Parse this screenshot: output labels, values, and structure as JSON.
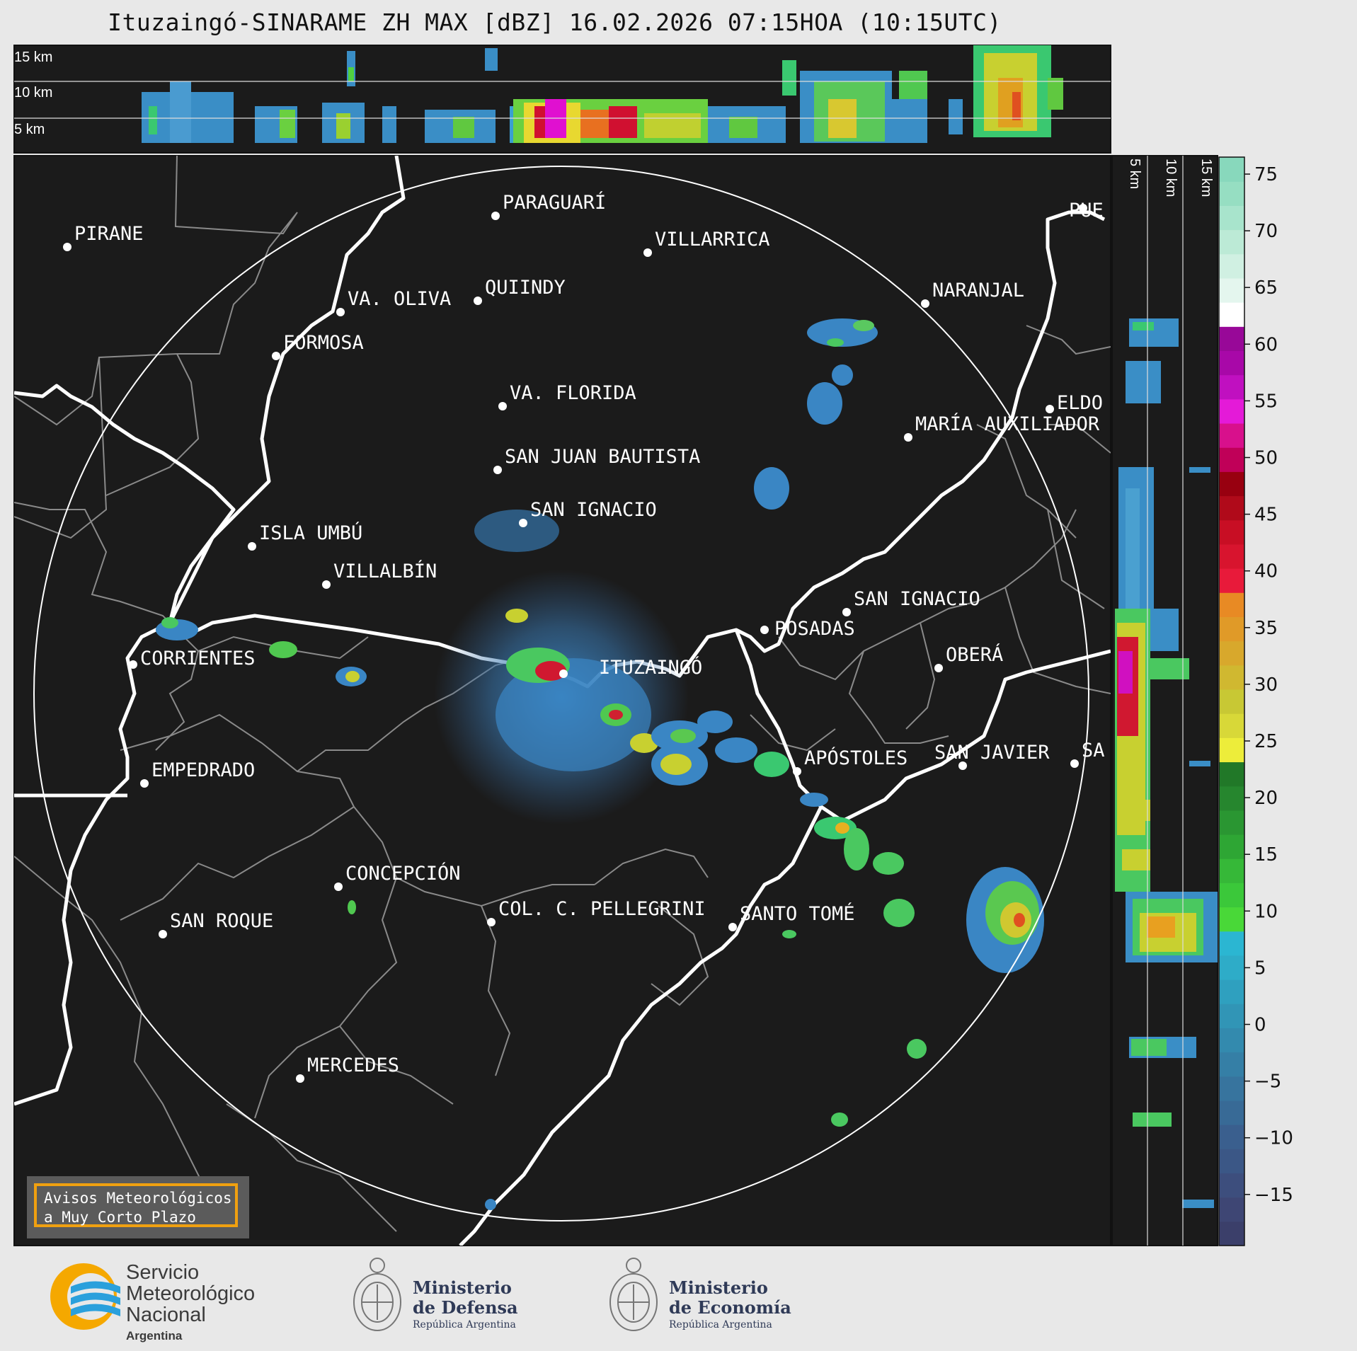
{
  "title": "Ituzaingó-SINARAME ZH MAX [dBZ] 16.02.2026 07:15HOA (10:15UTC)",
  "top_panel": {
    "height_labels": [
      "15 km",
      "10 km",
      "5 km"
    ]
  },
  "side_panel": {
    "height_labels": [
      "5 km",
      "10 km",
      "15 km"
    ]
  },
  "colorbar": {
    "ticks": [
      "75",
      "70",
      "65",
      "60",
      "55",
      "50",
      "45",
      "40",
      "35",
      "30",
      "25",
      "20",
      "15",
      "10",
      "5",
      "0",
      "−5",
      "−10",
      "−15"
    ]
  },
  "places": [
    {
      "name": "PARAGUARÍ"
    },
    {
      "name": "VILLARRICA"
    },
    {
      "name": "PIRANE"
    },
    {
      "name": "QUIINDY"
    },
    {
      "name": "VA. OLIVA"
    },
    {
      "name": "NARANJAL"
    },
    {
      "name": "FORMOSA"
    },
    {
      "name": "PUE"
    },
    {
      "name": "VA. FLORIDA"
    },
    {
      "name": "ELDO"
    },
    {
      "name": "MARÍA AUXILIADOR"
    },
    {
      "name": "SAN JUAN BAUTISTA"
    },
    {
      "name": "SAN IGNACIO"
    },
    {
      "name": "ISLA UMBÚ"
    },
    {
      "name": "VILLALBÍN"
    },
    {
      "name": "SAN IGNACIO"
    },
    {
      "name": "POSADAS"
    },
    {
      "name": "CORRIENTES"
    },
    {
      "name": "OBERÁ"
    },
    {
      "name": "ITUZAINGÓ"
    },
    {
      "name": "APÓSTOLES"
    },
    {
      "name": "SAN JAVIER"
    },
    {
      "name": "SA"
    },
    {
      "name": "EMPEDRADO"
    },
    {
      "name": "CONCEPCIÓN"
    },
    {
      "name": "COL. C. PELLEGRINI"
    },
    {
      "name": "SANTO TOMÉ"
    },
    {
      "name": "SAN ROQUE"
    },
    {
      "name": "MERCEDES"
    }
  ],
  "notice": {
    "line1": "Avisos Meteorológicos",
    "line2": "a Muy Corto Plazo"
  },
  "logos": {
    "smn": {
      "line1": "Servicio",
      "line2": "Meteorológico",
      "line3": "Nacional",
      "line4": "Argentina"
    },
    "defensa": {
      "line1": "Ministerio",
      "line2": "de Defensa",
      "line3": "República Argentina"
    },
    "economia": {
      "line1": "Ministerio",
      "line2": "de Economía",
      "line3": "República Argentina"
    }
  }
}
